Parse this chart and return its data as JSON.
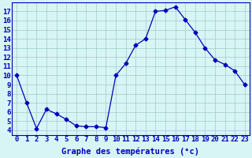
{
  "x": [
    0,
    1,
    2,
    3,
    4,
    5,
    6,
    7,
    8,
    9,
    10,
    11,
    12,
    13,
    14,
    15,
    16,
    17,
    18,
    19,
    20,
    21,
    22,
    23
  ],
  "y": [
    10.0,
    7.0,
    4.2,
    6.3,
    5.8,
    5.2,
    4.5,
    4.4,
    4.4,
    4.3,
    10.0,
    11.3,
    13.3,
    14.0,
    17.0,
    17.1,
    17.5,
    16.1,
    14.7,
    13.0,
    11.7,
    11.2,
    10.5,
    9.0
  ],
  "line_color": "#0000bb",
  "marker": "D",
  "marker_size": 2.5,
  "bg_color": "#d8f5f5",
  "grid_color": "#a0c8c8",
  "xlabel": "Graphe des températures (°c)",
  "xlabel_fontsize": 7.5,
  "ylabel_ticks": [
    4,
    5,
    6,
    7,
    8,
    9,
    10,
    11,
    12,
    13,
    14,
    15,
    16,
    17
  ],
  "ylim": [
    3.5,
    18.0
  ],
  "xlim": [
    -0.5,
    23.5
  ],
  "tick_fontsize": 6.5,
  "tick_color": "#0000bb",
  "label_color": "#0000bb",
  "spine_color": "#0000bb"
}
